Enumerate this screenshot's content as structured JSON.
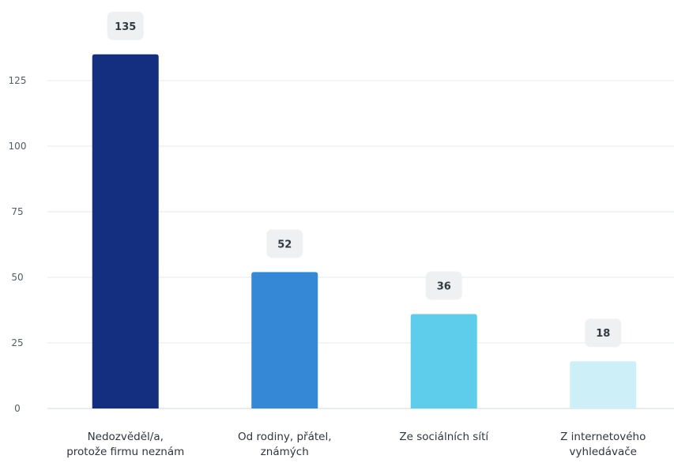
{
  "chart_data": {
    "type": "bar",
    "categories": [
      [
        "Nedozvěděl/a,",
        "protože firmu neznám"
      ],
      [
        "Od rodiny, přátel,",
        "známých"
      ],
      [
        "Ze sociálních sítí"
      ],
      [
        "Z internetového",
        "vyhledávače"
      ]
    ],
    "values": [
      135,
      52,
      36,
      18
    ],
    "colors": [
      "#142f7f",
      "#3588d6",
      "#5ecdec",
      "#cdf0f8"
    ],
    "yticks": [
      0,
      25,
      50,
      75,
      100,
      125
    ],
    "ylim": [
      0,
      135
    ],
    "grid": true,
    "legend": false,
    "title": "",
    "xlabel": "",
    "ylabel": ""
  }
}
